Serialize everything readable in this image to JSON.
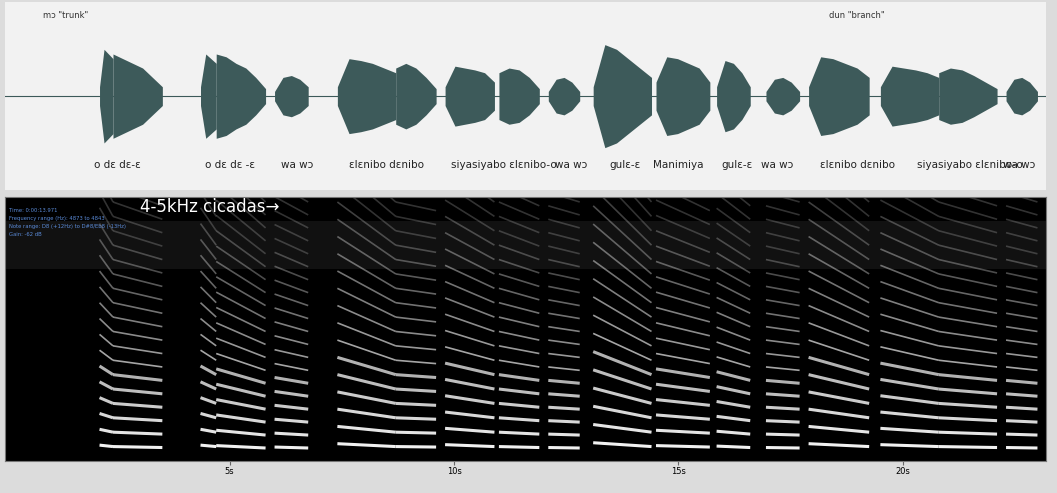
{
  "chart_data": [
    {
      "type": "waveform",
      "color": "#3d5a5a",
      "xlim": [
        0,
        23.2
      ],
      "ylim": [
        -1,
        1
      ],
      "tick_labels": false,
      "annotations": [
        {
          "text": "mɔ \"trunk\"",
          "x": 0.85
        },
        {
          "text": "dun \"branch\"",
          "x": 18.35
        }
      ],
      "words": [
        {
          "text": "o dɛ dɛ-ɛ",
          "x": 2.5
        },
        {
          "text": "o dɛ dɛ -ɛ",
          "x": 5.0
        },
        {
          "text": "wa wɔ",
          "x": 6.5
        },
        {
          "text": "ɛlɛnibo dɛnibo",
          "x": 8.5
        },
        {
          "text": "siyasiyabo ɛlɛnibo-o",
          "x": 11.1
        },
        {
          "text": "wa wɔ",
          "x": 12.6
        },
        {
          "text": "gulɛ-ɛ",
          "x": 13.8
        },
        {
          "text": "Manimiya",
          "x": 15.0
        },
        {
          "text": "gulɛ-ɛ",
          "x": 16.3
        },
        {
          "text": "wa wɔ",
          "x": 17.2
        },
        {
          "text": "ɛlɛnibo dɛnibo",
          "x": 19.0
        },
        {
          "text": "siyasiyabo ɛlɛnibo-o",
          "x": 21.5
        },
        {
          "text": "wa wɔ",
          "x": 22.6
        }
      ],
      "segments": [
        {
          "start": 2.1,
          "end": 2.4,
          "amps": [
            0.1,
            0.5,
            0.45,
            0.4
          ]
        },
        {
          "start": 2.4,
          "end": 3.5,
          "amps": [
            0.45,
            0.4,
            0.35,
            0.3,
            0.2,
            0.1
          ]
        },
        {
          "start": 4.35,
          "end": 4.7,
          "amps": [
            0.1,
            0.45,
            0.4,
            0.35
          ]
        },
        {
          "start": 4.7,
          "end": 5.8,
          "amps": [
            0.45,
            0.42,
            0.35,
            0.3,
            0.2,
            0.08
          ]
        },
        {
          "start": 6.0,
          "end": 6.75,
          "amps": [
            0.05,
            0.2,
            0.22,
            0.18,
            0.1
          ]
        },
        {
          "start": 7.4,
          "end": 8.7,
          "amps": [
            0.1,
            0.4,
            0.38,
            0.35,
            0.3,
            0.25
          ]
        },
        {
          "start": 8.7,
          "end": 9.6,
          "amps": [
            0.3,
            0.35,
            0.3,
            0.2,
            0.08
          ]
        },
        {
          "start": 9.8,
          "end": 10.9,
          "amps": [
            0.1,
            0.32,
            0.3,
            0.28,
            0.25,
            0.15
          ]
        },
        {
          "start": 11.0,
          "end": 11.9,
          "amps": [
            0.25,
            0.3,
            0.28,
            0.2,
            0.08
          ]
        },
        {
          "start": 12.1,
          "end": 12.8,
          "amps": [
            0.05,
            0.18,
            0.2,
            0.15,
            0.05
          ]
        },
        {
          "start": 13.1,
          "end": 14.4,
          "amps": [
            0.1,
            0.55,
            0.5,
            0.4,
            0.3,
            0.2
          ]
        },
        {
          "start": 14.5,
          "end": 15.7,
          "amps": [
            0.15,
            0.42,
            0.4,
            0.35,
            0.3,
            0.15
          ]
        },
        {
          "start": 15.85,
          "end": 16.6,
          "amps": [
            0.1,
            0.38,
            0.35,
            0.25,
            0.1
          ]
        },
        {
          "start": 16.95,
          "end": 17.7,
          "amps": [
            0.05,
            0.18,
            0.2,
            0.15,
            0.05
          ]
        },
        {
          "start": 17.9,
          "end": 19.25,
          "amps": [
            0.1,
            0.42,
            0.4,
            0.35,
            0.3,
            0.2
          ]
        },
        {
          "start": 19.5,
          "end": 20.8,
          "amps": [
            0.1,
            0.32,
            0.3,
            0.28,
            0.25,
            0.2
          ]
        },
        {
          "start": 20.8,
          "end": 22.1,
          "amps": [
            0.25,
            0.3,
            0.28,
            0.22,
            0.15,
            0.08
          ]
        },
        {
          "start": 22.3,
          "end": 23.0,
          "amps": [
            0.05,
            0.18,
            0.2,
            0.15,
            0.05
          ]
        }
      ]
    },
    {
      "type": "spectrogram",
      "color": "#ffffff",
      "xlim": [
        0,
        23.2
      ],
      "xticks": [
        {
          "value": 5,
          "label": "5s"
        },
        {
          "value": 10,
          "label": "10s"
        },
        {
          "value": 15,
          "label": "15s"
        },
        {
          "value": 20,
          "label": "20s"
        }
      ],
      "ylim": [
        0,
        5500
      ],
      "tick_labels": "x",
      "annotations": [
        {
          "text": "4-5kHz cicadas→",
          "x": 3.0,
          "y": 5290
        }
      ],
      "info": [
        "Time: 0:00:13.971",
        "Frequency range (Hz): 4873 to 4843",
        "Note range: D8 (+12Hz) to D#8/Eb8 (-13Hz)",
        "Gain: -62 dB"
      ],
      "cicada_band": [
        4000,
        5000
      ],
      "syllables": [
        {
          "start": 2.1,
          "end": 2.4,
          "f0_start": 330,
          "f0_end": 300
        },
        {
          "start": 2.4,
          "end": 3.5,
          "f0_start": 300,
          "f0_end": 280
        },
        {
          "start": 4.35,
          "end": 4.7,
          "f0_start": 330,
          "f0_end": 300
        },
        {
          "start": 4.7,
          "end": 5.8,
          "f0_start": 320,
          "f0_end": 270
        },
        {
          "start": 6.0,
          "end": 6.75,
          "f0_start": 290,
          "f0_end": 270
        },
        {
          "start": 7.4,
          "end": 8.7,
          "f0_start": 360,
          "f0_end": 300
        },
        {
          "start": 8.7,
          "end": 9.6,
          "f0_start": 300,
          "f0_end": 290
        },
        {
          "start": 9.8,
          "end": 10.9,
          "f0_start": 340,
          "f0_end": 300
        },
        {
          "start": 11.0,
          "end": 11.9,
          "f0_start": 300,
          "f0_end": 280
        },
        {
          "start": 12.1,
          "end": 12.8,
          "f0_start": 280,
          "f0_end": 270
        },
        {
          "start": 13.1,
          "end": 14.4,
          "f0_start": 380,
          "f0_end": 300
        },
        {
          "start": 14.5,
          "end": 15.7,
          "f0_start": 320,
          "f0_end": 290
        },
        {
          "start": 15.85,
          "end": 16.6,
          "f0_start": 310,
          "f0_end": 280
        },
        {
          "start": 16.95,
          "end": 17.7,
          "f0_start": 280,
          "f0_end": 270
        },
        {
          "start": 17.9,
          "end": 19.25,
          "f0_start": 360,
          "f0_end": 300
        },
        {
          "start": 19.5,
          "end": 20.8,
          "f0_start": 340,
          "f0_end": 300
        },
        {
          "start": 20.8,
          "end": 22.1,
          "f0_start": 300,
          "f0_end": 280
        },
        {
          "start": 22.3,
          "end": 23.0,
          "f0_start": 280,
          "f0_end": 270
        }
      ]
    }
  ]
}
